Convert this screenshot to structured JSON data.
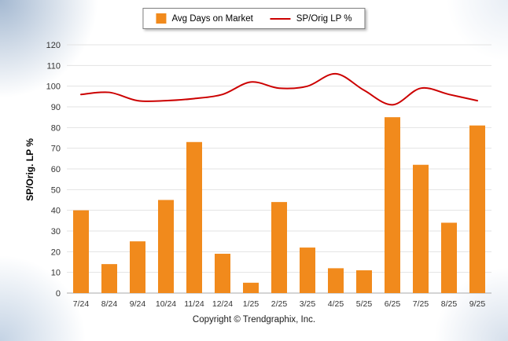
{
  "legend": {
    "bar_label": "Avg Days on Market",
    "line_label": "SP/Orig LP %"
  },
  "axis": {
    "y_title": "SP/Orig. LP %"
  },
  "footer": {
    "copyright": "Copyright © Trendgraphix, Inc."
  },
  "colors": {
    "bar": "#F18A1C",
    "line": "#CC0000",
    "grid": "#e3e3e3",
    "baseline": "#aaaaaa",
    "axis_text": "#333333"
  },
  "chart_data": {
    "type": "bar+line",
    "categories": [
      "7/24",
      "8/24",
      "9/24",
      "10/24",
      "11/24",
      "12/24",
      "1/25",
      "2/25",
      "3/25",
      "4/25",
      "5/25",
      "6/25",
      "7/25",
      "8/25",
      "9/25"
    ],
    "series": [
      {
        "name": "Avg Days on Market",
        "type": "bar",
        "values": [
          40,
          14,
          25,
          45,
          73,
          19,
          5,
          44,
          22,
          12,
          11,
          85,
          62,
          34,
          81
        ]
      },
      {
        "name": "SP/Orig LP %",
        "type": "line",
        "values": [
          96,
          97,
          93,
          93,
          94,
          96,
          102,
          99,
          100,
          106,
          98,
          91,
          99,
          96,
          93
        ]
      }
    ],
    "title": "",
    "xlabel": "",
    "ylabel": "SP/Orig. LP %",
    "ylim": [
      0,
      120
    ],
    "ytick_step": 10,
    "grid": true,
    "legend_position": "top"
  }
}
